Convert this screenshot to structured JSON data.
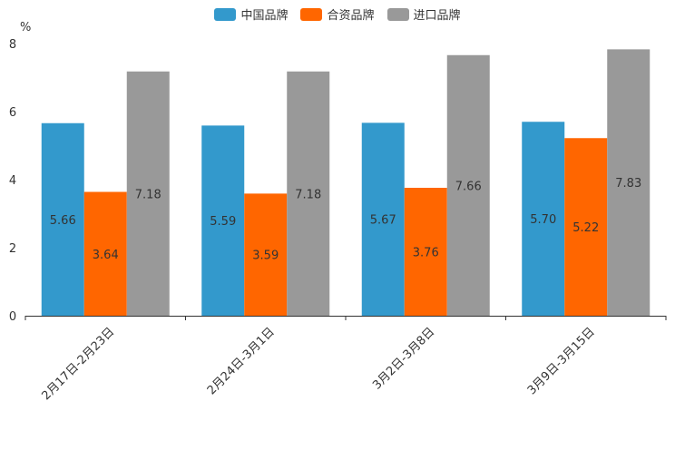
{
  "chart_data": {
    "type": "bar",
    "unit_label": "%",
    "categories": [
      "2月17日-2月23日",
      "2月24日-3月1日",
      "3月2日-3月8日",
      "3月9日-3月15日"
    ],
    "series": [
      {
        "name": "中国品牌",
        "color": "#3399cc",
        "values": [
          5.66,
          5.59,
          5.67,
          5.7
        ]
      },
      {
        "name": "合资品牌",
        "color": "#ff6600",
        "values": [
          3.64,
          3.59,
          3.76,
          5.22
        ]
      },
      {
        "name": "进口品牌",
        "color": "#999999",
        "values": [
          7.18,
          7.18,
          7.66,
          7.83
        ]
      }
    ],
    "ylim": [
      0,
      8
    ],
    "yticks": [
      0,
      2,
      4,
      6,
      8
    ],
    "legend_position": "top-center"
  }
}
